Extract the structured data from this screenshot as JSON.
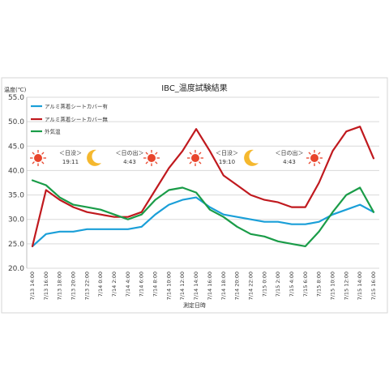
{
  "chart_data": {
    "type": "line",
    "title": "IBC_温度試験結果",
    "xlabel": "測定日時",
    "ylabel": "温度(℃)",
    "ylim": [
      20.0,
      55.0
    ],
    "yticks": [
      "20.0",
      "25.0",
      "30.0",
      "35.0",
      "40.0",
      "45.0",
      "50.0",
      "55.0"
    ],
    "grid": true,
    "legend_position": "top-left",
    "x": [
      "7/13 14:00",
      "7/13 16:00",
      "7/13 18:00",
      "7/13 20:00",
      "7/13 22:00",
      "7/14 0:00",
      "7/14 2:00",
      "7/14 4:00",
      "7/14 6:00",
      "7/14 8:00",
      "7/14 10:00",
      "7/14 12:00",
      "7/14 14:00",
      "7/14 16:00",
      "7/14 18:00",
      "7/14 20:00",
      "7/14 22:00",
      "7/15 0:00",
      "7/15 2:00",
      "7/15 4:00",
      "7/15 6:00",
      "7/15 8:00",
      "7/15 10:00",
      "7/15 12:00",
      "7/15 14:00",
      "7/15 16:00"
    ],
    "series": [
      {
        "name": "アルミ蒸着シートカバー有",
        "color": "#1a9fd8",
        "values": [
          24.5,
          27.0,
          27.5,
          27.5,
          28.0,
          28.0,
          28.0,
          28.0,
          28.5,
          31.0,
          33.0,
          34.0,
          34.5,
          32.5,
          31.0,
          30.5,
          30.0,
          29.5,
          29.5,
          29.0,
          29.0,
          29.5,
          31.0,
          32.0,
          33.0,
          31.5
        ]
      },
      {
        "name": "アルミ蒸着シートカバー無",
        "color": "#c0191e",
        "values": [
          24.5,
          36.0,
          34.0,
          32.5,
          31.5,
          31.0,
          30.5,
          30.5,
          31.5,
          36.0,
          40.5,
          44.0,
          48.5,
          44.0,
          39.0,
          37.0,
          35.0,
          34.0,
          33.5,
          32.5,
          32.5,
          37.5,
          44.0,
          48.0,
          49.0,
          42.5
        ]
      },
      {
        "name": "外気温",
        "color": "#1a9c48",
        "values": [
          38.0,
          37.0,
          34.5,
          33.0,
          32.5,
          32.0,
          31.0,
          30.0,
          31.0,
          34.0,
          36.0,
          36.5,
          35.5,
          32.0,
          30.5,
          28.5,
          27.0,
          26.5,
          25.5,
          25.0,
          24.5,
          27.5,
          31.5,
          35.0,
          36.5,
          31.5
        ]
      }
    ],
    "annotations": [
      {
        "label": "＜日没＞",
        "time": "19:11",
        "icon": "moon-icon"
      },
      {
        "label": "＜日の出＞",
        "time": "4:43",
        "icon": "sun-icon"
      },
      {
        "label": "＜日没＞",
        "time": "19:10",
        "icon": "moon-icon"
      },
      {
        "label": "＜日の出＞",
        "time": "4:43",
        "icon": "sun-icon"
      }
    ],
    "colors": {
      "sun": "#e8452c",
      "moon": "#f5b82e"
    }
  }
}
